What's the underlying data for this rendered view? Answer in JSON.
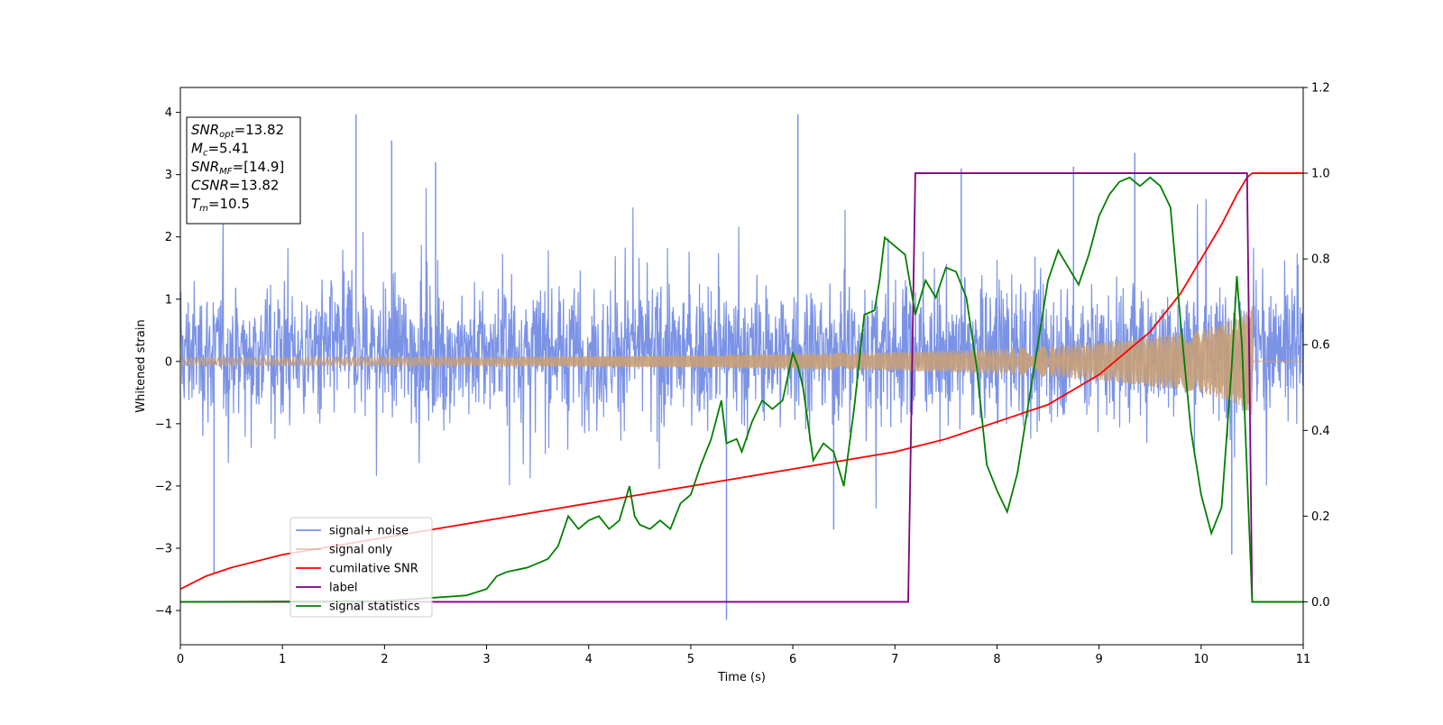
{
  "chart_data": {
    "type": "line",
    "xlabel": "Time (s)",
    "ylabel": "Whitened strain",
    "xlim": [
      0,
      11
    ],
    "ylim": [
      -4.55,
      4.4
    ],
    "y2lim": [
      -0.1,
      1.2
    ],
    "xticks": [
      0,
      1,
      2,
      3,
      4,
      5,
      6,
      7,
      8,
      9,
      10,
      11
    ],
    "yticks": [
      -4,
      -3,
      -2,
      -1,
      0,
      1,
      2,
      3,
      4
    ],
    "y2ticks": [
      "0.0",
      "0.2",
      "0.4",
      "0.6",
      "0.8",
      "1.0",
      "1.2"
    ],
    "legend_position": "lower-left",
    "info_box": {
      "lines": [
        {
          "var": "SNR",
          "sub": "opt",
          "value": "=13.82"
        },
        {
          "var": "M",
          "sub": "c",
          "value": "=5.41"
        },
        {
          "var": "SNR",
          "sub": "MF",
          "value": "=[14.9]"
        },
        {
          "var": "CSNR",
          "sub": "",
          "value": "=13.82"
        },
        {
          "var": "T",
          "sub": "m",
          "value": "=10.5"
        }
      ]
    },
    "series": [
      {
        "name": "signal+ noise",
        "color": "#7b93e6",
        "axis": "left",
        "kind": "noise",
        "envelope": {
          "x": [
            0,
            11
          ],
          "low_typical": -1.5,
          "high_typical": 2.0
        },
        "spikes": [
          [
            0.33,
            -3.4
          ],
          [
            1.72,
            3.97
          ],
          [
            2.07,
            3.55
          ],
          [
            2.5,
            3.2
          ],
          [
            5.35,
            -4.15
          ],
          [
            6.05,
            3.97
          ],
          [
            6.4,
            -2.7
          ],
          [
            7.65,
            3.1
          ],
          [
            8.75,
            3.13
          ],
          [
            9.35,
            3.35
          ],
          [
            10.3,
            -3.1
          ]
        ]
      },
      {
        "name": "signal only",
        "color": "#c8a078",
        "axis": "left",
        "kind": "chirp",
        "amplitude": [
          [
            0,
            0.06
          ],
          [
            3,
            0.07
          ],
          [
            5,
            0.1
          ],
          [
            7,
            0.15
          ],
          [
            8,
            0.2
          ],
          [
            9,
            0.3
          ],
          [
            10,
            0.5
          ],
          [
            10.4,
            0.72
          ],
          [
            10.5,
            0.9
          ]
        ],
        "end": 10.5
      },
      {
        "name": "cumilative SNR",
        "color": "#ff0000",
        "axis": "right",
        "x": [
          0,
          0.25,
          0.5,
          1,
          1.5,
          2,
          2.5,
          3,
          3.5,
          4,
          4.5,
          5,
          5.5,
          6,
          6.5,
          7,
          7.5,
          8,
          8.5,
          9,
          9.5,
          9.8,
          10,
          10.2,
          10.35,
          10.45,
          10.5,
          11
        ],
        "y": [
          0.03,
          0.06,
          0.08,
          0.11,
          0.13,
          0.15,
          0.17,
          0.19,
          0.21,
          0.23,
          0.25,
          0.27,
          0.29,
          0.31,
          0.33,
          0.35,
          0.38,
          0.42,
          0.46,
          0.53,
          0.63,
          0.72,
          0.8,
          0.88,
          0.95,
          0.99,
          1.0,
          1.0
        ]
      },
      {
        "name": "label",
        "color": "#800080",
        "axis": "right",
        "x": [
          0,
          7.13,
          7.2,
          10.45,
          10.5,
          11
        ],
        "y": [
          0,
          0,
          1,
          1,
          0,
          0
        ]
      },
      {
        "name": "signal statistics",
        "color": "#008000",
        "axis": "right",
        "x": [
          0,
          2.0,
          2.5,
          2.8,
          3.0,
          3.1,
          3.2,
          3.3,
          3.4,
          3.5,
          3.6,
          3.7,
          3.8,
          3.9,
          4.0,
          4.1,
          4.2,
          4.3,
          4.4,
          4.45,
          4.5,
          4.6,
          4.7,
          4.8,
          4.9,
          5.0,
          5.1,
          5.2,
          5.3,
          5.35,
          5.45,
          5.5,
          5.6,
          5.7,
          5.8,
          5.9,
          6.0,
          6.05,
          6.1,
          6.2,
          6.3,
          6.4,
          6.5,
          6.6,
          6.7,
          6.8,
          6.85,
          6.9,
          7.0,
          7.1,
          7.2,
          7.3,
          7.4,
          7.5,
          7.6,
          7.7,
          7.8,
          7.9,
          8.0,
          8.1,
          8.2,
          8.3,
          8.4,
          8.5,
          8.6,
          8.7,
          8.8,
          8.9,
          9.0,
          9.1,
          9.2,
          9.3,
          9.4,
          9.5,
          9.6,
          9.7,
          9.8,
          9.9,
          10.0,
          10.1,
          10.2,
          10.3,
          10.35,
          10.4,
          10.45,
          10.5,
          11
        ],
        "y": [
          0.0,
          0.002,
          0.01,
          0.015,
          0.03,
          0.06,
          0.07,
          0.075,
          0.08,
          0.09,
          0.1,
          0.13,
          0.2,
          0.17,
          0.19,
          0.2,
          0.17,
          0.19,
          0.27,
          0.2,
          0.18,
          0.17,
          0.19,
          0.17,
          0.23,
          0.25,
          0.32,
          0.38,
          0.47,
          0.37,
          0.38,
          0.35,
          0.42,
          0.47,
          0.45,
          0.47,
          0.58,
          0.55,
          0.5,
          0.33,
          0.37,
          0.35,
          0.27,
          0.45,
          0.67,
          0.68,
          0.75,
          0.85,
          0.83,
          0.81,
          0.67,
          0.75,
          0.71,
          0.78,
          0.77,
          0.71,
          0.55,
          0.32,
          0.26,
          0.21,
          0.3,
          0.45,
          0.6,
          0.75,
          0.82,
          0.78,
          0.74,
          0.81,
          0.9,
          0.95,
          0.98,
          0.99,
          0.97,
          0.99,
          0.97,
          0.92,
          0.65,
          0.4,
          0.25,
          0.16,
          0.22,
          0.55,
          0.76,
          0.6,
          0.3,
          0.0,
          0.0
        ]
      }
    ]
  }
}
